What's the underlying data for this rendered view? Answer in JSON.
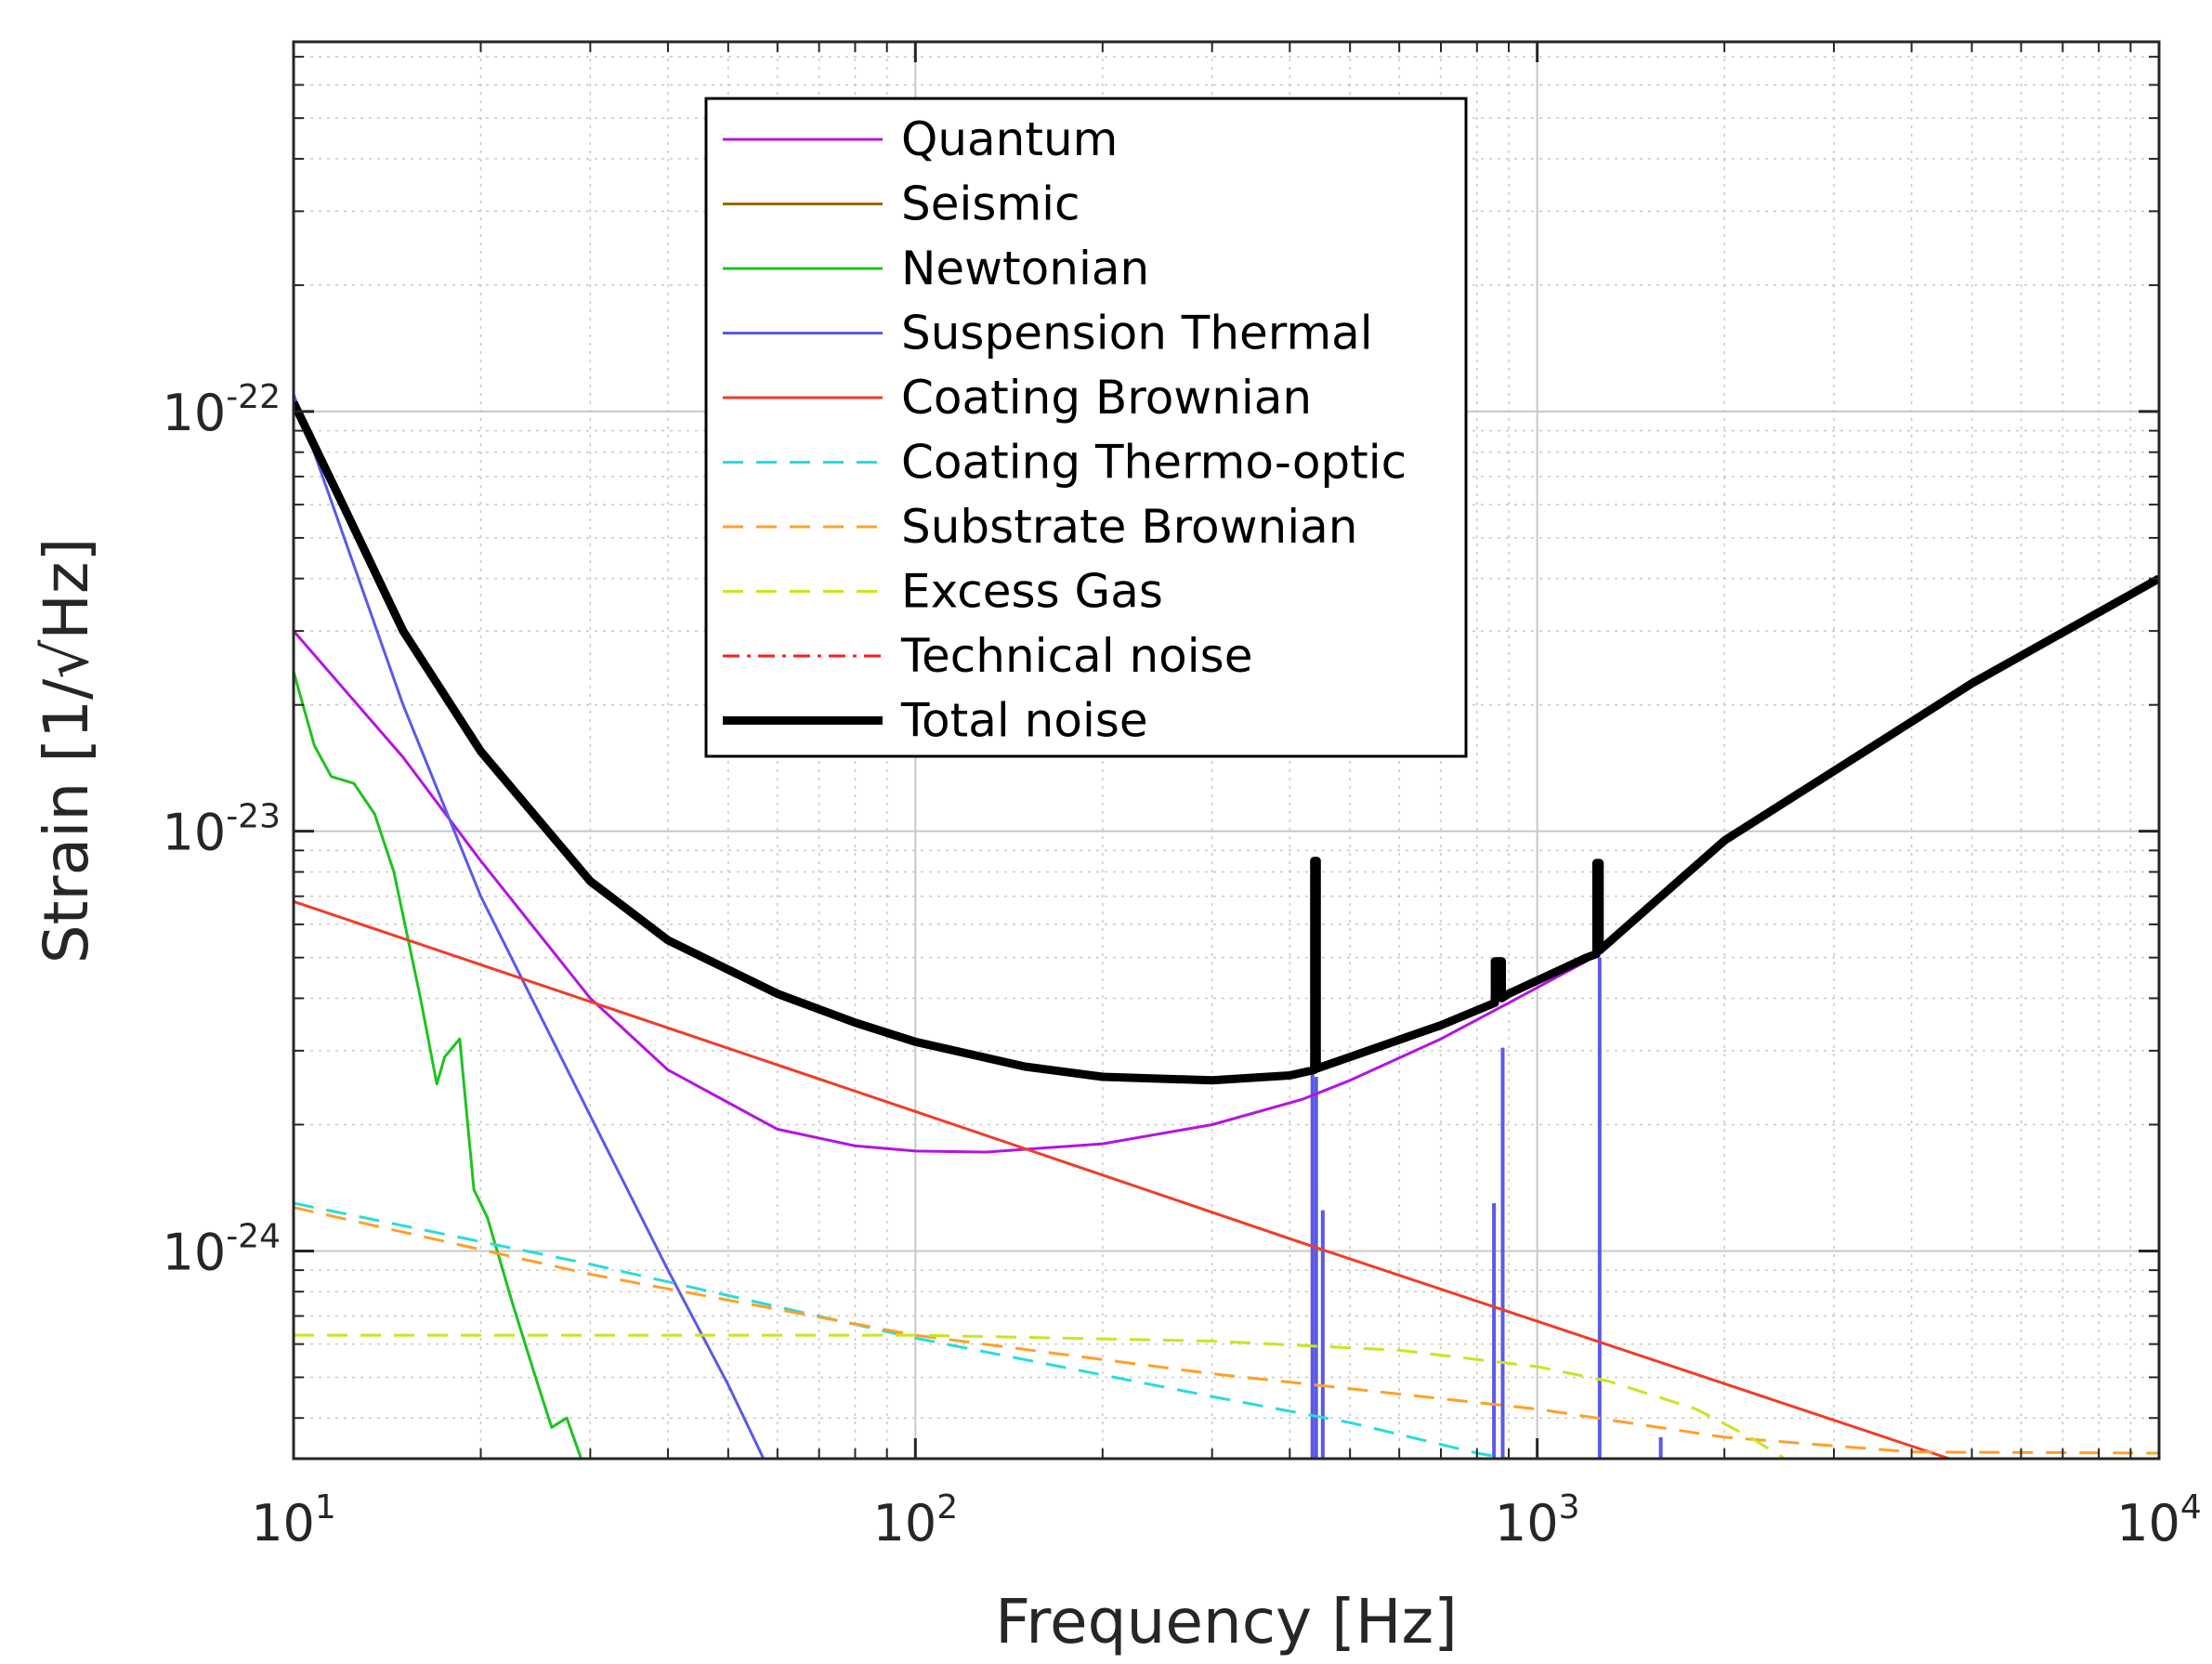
{
  "chart_data": {
    "type": "line",
    "title": "",
    "xlabel": "Frequency [Hz]",
    "ylabel": "Strain [1/√Hz]",
    "xscale": "log",
    "yscale": "log",
    "xlim": [
      10,
      10000
    ],
    "ylim": [
      3.2e-25,
      7.6e-22
    ],
    "grid": true,
    "legend_position": "top-center",
    "x_ticks": [
      {
        "base": "10",
        "exp": "1",
        "value": 10
      },
      {
        "base": "10",
        "exp": "2",
        "value": 100
      },
      {
        "base": "10",
        "exp": "3",
        "value": 1000
      },
      {
        "base": "10",
        "exp": "4",
        "value": 10000
      }
    ],
    "y_ticks": [
      {
        "base": "10",
        "exp": "-24",
        "value": 1e-24
      },
      {
        "base": "10",
        "exp": "-23",
        "value": 1e-23
      },
      {
        "base": "10",
        "exp": "-22",
        "value": 1e-22
      }
    ],
    "series": [
      {
        "name": "Quantum",
        "color": "#b414e0",
        "dash": "solid",
        "width": 3,
        "x": [
          10,
          15,
          20,
          30,
          40,
          60,
          80,
          100,
          130,
          200,
          300,
          420,
          500,
          700,
          900,
          1200,
          1250
        ],
        "y": [
          3e-23,
          1.5e-23,
          8.5e-24,
          4e-24,
          2.7e-24,
          1.95e-24,
          1.78e-24,
          1.73e-24,
          1.72e-24,
          1.8e-24,
          2e-24,
          2.3e-24,
          2.55e-24,
          3.2e-24,
          3.9e-24,
          4.9e-24,
          5.1e-24
        ]
      },
      {
        "name": "Seismic",
        "color": "#996611",
        "dash": "solid",
        "width": 3,
        "x": [],
        "y": []
      },
      {
        "name": "Newtonian",
        "color": "#1ec31e",
        "dash": "solid",
        "width": 3,
        "x": [
          10,
          10.8,
          11.5,
          12.5,
          13.5,
          14.5,
          16,
          17,
          17.5,
          18.5,
          19.5,
          20.5,
          22.5,
          24.5,
          26,
          27.5,
          29
        ],
        "y": [
          2.4e-23,
          1.6e-23,
          1.35e-23,
          1.3e-23,
          1.1e-23,
          8e-24,
          4e-24,
          2.5e-24,
          2.9e-24,
          3.2e-24,
          1.4e-24,
          1.2e-24,
          7.5e-25,
          5e-25,
          3.8e-25,
          4e-25,
          3.2e-25
        ]
      },
      {
        "name": "Suspension Thermal",
        "color": "#5a5ae6",
        "dash": "solid",
        "width": 3,
        "x": [
          10,
          15,
          20,
          30,
          40,
          50,
          57
        ],
        "y": [
          1.1e-22,
          2e-23,
          7e-24,
          2.1e-24,
          9e-25,
          4.8e-25,
          3.2e-25
        ]
      },
      {
        "name": "Coating Brownian",
        "color": "#f03c28",
        "dash": "solid",
        "width": 3,
        "x": [
          10,
          100,
          440,
          1000,
          4600
        ],
        "y": [
          6.8e-24,
          2.15e-24,
          1.02e-24,
          6.8e-25,
          3.2e-25
        ]
      },
      {
        "name": "Coating Thermo-optic",
        "color": "#28dcdc",
        "dash": "dashed",
        "width": 3,
        "x": [
          10,
          30,
          100,
          300,
          500,
          800,
          900
        ],
        "y": [
          1.3e-24,
          9.3e-25,
          6.2e-25,
          4.5e-25,
          3.9e-25,
          3.3e-25,
          3.2e-25
        ]
      },
      {
        "name": "Substrate Brownian",
        "color": "#ffa028",
        "dash": "dashed",
        "width": 3,
        "x": [
          10,
          30,
          100,
          300,
          1000,
          2000,
          4000,
          10000
        ],
        "y": [
          1.27e-24,
          8.8e-25,
          6.3e-25,
          5.1e-25,
          4.2e-25,
          3.6e-25,
          3.32e-25,
          3.3e-25
        ]
      },
      {
        "name": "Excess Gas",
        "color": "#c8e61e",
        "dash": "dashed",
        "width": 3,
        "x": [
          10,
          100,
          300,
          600,
          1000,
          1300,
          1800,
          2200,
          2500
        ],
        "y": [
          6.3e-25,
          6.3e-25,
          6.1e-25,
          5.8e-25,
          5.3e-25,
          4.9e-25,
          4.2e-25,
          3.6e-25,
          3.2e-25
        ]
      },
      {
        "name": "Technical noise",
        "color": "#ff1e1e",
        "dash": "dashdot",
        "width": 3,
        "x": [],
        "y": []
      },
      {
        "name": "Total noise",
        "color": "#000000",
        "dash": "solid",
        "width": 9,
        "x": [
          10,
          12,
          15,
          20,
          30,
          40,
          60,
          80,
          100,
          150,
          200,
          300,
          400,
          438,
          438,
          442,
          442,
          500,
          700,
          855,
          855,
          877,
          877,
          900,
          1200,
          1245,
          1245,
          1260,
          1260,
          2000,
          5000,
          10000
        ],
        "y": [
          1.05e-22,
          6e-23,
          3e-23,
          1.55e-23,
          7.6e-24,
          5.5e-24,
          4.1e-24,
          3.5e-24,
          3.15e-24,
          2.75e-24,
          2.6e-24,
          2.55e-24,
          2.62e-24,
          2.7e-24,
          8.5e-24,
          8.5e-24,
          2.72e-24,
          2.9e-24,
          3.45e-24,
          3.9e-24,
          4.9e-24,
          4.9e-24,
          4e-24,
          4.1e-24,
          5e-24,
          5.1e-24,
          8.4e-24,
          8.4e-24,
          5.2e-24,
          9.5e-24,
          2.25e-23,
          4e-23
        ]
      }
    ],
    "spikes": [
      {
        "series": "Suspension Thermal",
        "x": 435,
        "y_top": 2.7e-24
      },
      {
        "series": "Suspension Thermal",
        "x": 441,
        "y_top": 2.6e-24
      },
      {
        "series": "Suspension Thermal",
        "x": 452,
        "y_top": 1.25e-24
      },
      {
        "series": "Suspension Thermal",
        "x": 852,
        "y_top": 1.3e-24
      },
      {
        "series": "Suspension Thermal",
        "x": 880,
        "y_top": 3.05e-24
      },
      {
        "series": "Suspension Thermal",
        "x": 1260,
        "y_top": 5e-24
      },
      {
        "series": "Suspension Thermal",
        "x": 1580,
        "y_top": 3.6e-25
      }
    ],
    "colors": {
      "axes": "#262626",
      "grid": "#c8c8c8"
    }
  }
}
